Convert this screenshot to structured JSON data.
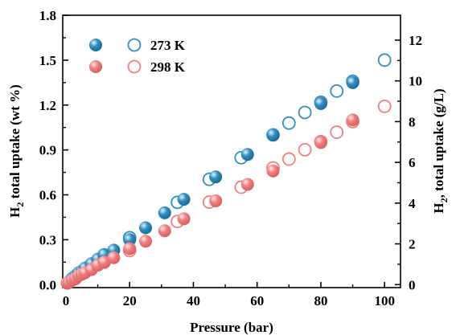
{
  "chart_data": {
    "type": "scatter",
    "xlabel": "Pressure (bar)",
    "ylabel": {
      "prefix": "H",
      "sub": "2",
      "rest": " total uptake (wt %)"
    },
    "y2label": {
      "prefix": "H",
      "sub": "2",
      "rest": ", total uptake (g/L)"
    },
    "xlim": [
      -1,
      105
    ],
    "ylim": [
      -0.02,
      1.8
    ],
    "y2lim": [
      -0.1469,
      13.2207
    ],
    "xticks": [
      0,
      20,
      40,
      60,
      80,
      100
    ],
    "xtick_labels": [
      "0",
      "20",
      "40",
      "60",
      "80",
      "100"
    ],
    "yticks": [
      0.0,
      0.3,
      0.6,
      0.9,
      1.2,
      1.5,
      1.8
    ],
    "ytick_labels": [
      "0.0",
      "0.3",
      "0.6",
      "0.9",
      "1.2",
      "1.5",
      "1.8"
    ],
    "y2ticks": [
      0,
      2,
      4,
      6,
      8,
      10,
      12
    ],
    "y2tick_labels": [
      "0",
      "2",
      "4",
      "6",
      "8",
      "10",
      "12"
    ],
    "grid": false,
    "legend_position": "top-left",
    "colors": {
      "blue": "#2f8fc0",
      "red": "#f08080"
    },
    "series": [
      {
        "name": "273 K",
        "marker": "filled",
        "color": "#2f8fc0",
        "axis": "left",
        "points": [
          [
            0.4,
            0.01
          ],
          [
            1,
            0.02
          ],
          [
            2,
            0.04
          ],
          [
            3,
            0.06
          ],
          [
            4,
            0.08
          ],
          [
            5,
            0.09
          ],
          [
            6,
            0.11
          ],
          [
            8,
            0.14
          ],
          [
            10,
            0.17
          ],
          [
            12,
            0.2
          ],
          [
            15,
            0.23
          ],
          [
            20,
            0.3
          ],
          [
            25,
            0.38
          ],
          [
            31,
            0.48
          ],
          [
            37,
            0.57
          ],
          [
            47,
            0.72
          ],
          [
            57,
            0.87
          ],
          [
            65,
            1.0
          ],
          [
            80,
            1.21
          ],
          [
            90,
            1.35
          ]
        ]
      },
      {
        "name": "273 K",
        "marker": "open",
        "color": "#2f8fc0",
        "axis": "right",
        "points": [
          [
            2,
            0.29
          ],
          [
            5,
            0.65
          ],
          [
            8,
            1.0
          ],
          [
            12,
            1.46
          ],
          [
            20,
            2.3
          ],
          [
            35,
            4.04
          ],
          [
            45,
            5.17
          ],
          [
            55,
            6.23
          ],
          [
            65,
            7.35
          ],
          [
            70,
            7.93
          ],
          [
            75,
            8.45
          ],
          [
            80,
            8.95
          ],
          [
            85,
            9.5
          ],
          [
            90,
            9.98
          ],
          [
            100,
            11.02
          ]
        ]
      },
      {
        "name": "298 K",
        "marker": "filled",
        "color": "#f08080",
        "axis": "left",
        "points": [
          [
            0.4,
            0.01
          ],
          [
            1,
            0.015
          ],
          [
            2,
            0.03
          ],
          [
            3,
            0.04
          ],
          [
            4,
            0.06
          ],
          [
            5,
            0.07
          ],
          [
            6,
            0.08
          ],
          [
            8,
            0.1
          ],
          [
            10,
            0.13
          ],
          [
            12,
            0.15
          ],
          [
            15,
            0.18
          ],
          [
            20,
            0.24
          ],
          [
            25,
            0.29
          ],
          [
            31,
            0.36
          ],
          [
            37,
            0.44
          ],
          [
            47,
            0.56
          ],
          [
            57,
            0.67
          ],
          [
            65,
            0.76
          ],
          [
            80,
            0.95
          ],
          [
            90,
            1.1
          ]
        ]
      },
      {
        "name": "298 K",
        "marker": "open",
        "color": "#f08080",
        "axis": "right",
        "points": [
          [
            2,
            0.24
          ],
          [
            5,
            0.53
          ],
          [
            8,
            0.8
          ],
          [
            12,
            1.1
          ],
          [
            20,
            1.67
          ],
          [
            35,
            3.1
          ],
          [
            45,
            4.05
          ],
          [
            55,
            4.78
          ],
          [
            65,
            5.73
          ],
          [
            70,
            6.16
          ],
          [
            75,
            6.62
          ],
          [
            80,
            7.02
          ],
          [
            85,
            7.48
          ],
          [
            90,
            8.0
          ],
          [
            100,
            8.75
          ]
        ]
      }
    ],
    "legend": [
      {
        "label": "273 K",
        "color": "#2f8fc0"
      },
      {
        "label": "298 K",
        "color": "#f08080"
      }
    ]
  }
}
